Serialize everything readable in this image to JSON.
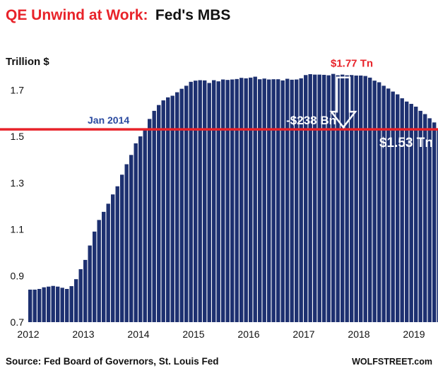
{
  "title": {
    "red_part": "QE Unwind at Work:",
    "black_part": "Fed's MBS"
  },
  "source": "Source: Fed Board of Governors, St. Louis Fed",
  "brand": "WOLFSTREET.com",
  "colors": {
    "bar": "#1d3070",
    "reference_line": "#e8232a",
    "title_accent": "#e8232a",
    "annotation_blue": "#2a4aa0",
    "annotation_white": "#ffffff"
  },
  "chart_data": {
    "type": "bar",
    "ylabel": "Trillion $",
    "ylim": [
      0.7,
      1.85
    ],
    "y_ticks": [
      "0.7",
      "0.9",
      "1.1",
      "1.3",
      "1.5",
      "1.7"
    ],
    "x_ticks": [
      "2012",
      "2013",
      "2014",
      "2015",
      "2016",
      "2017",
      "2018",
      "2019"
    ],
    "x_start_year": 2012,
    "bars_per_year": 12,
    "grid": false,
    "values": [
      0.84,
      0.84,
      0.843,
      0.85,
      0.853,
      0.856,
      0.853,
      0.848,
      0.843,
      0.855,
      0.885,
      0.928,
      0.968,
      1.03,
      1.09,
      1.14,
      1.175,
      1.21,
      1.25,
      1.285,
      1.335,
      1.38,
      1.42,
      1.47,
      1.5,
      1.535,
      1.575,
      1.61,
      1.635,
      1.655,
      1.668,
      1.675,
      1.69,
      1.705,
      1.718,
      1.735,
      1.74,
      1.742,
      1.741,
      1.73,
      1.742,
      1.737,
      1.745,
      1.743,
      1.745,
      1.747,
      1.752,
      1.75,
      1.753,
      1.757,
      1.746,
      1.749,
      1.745,
      1.746,
      1.746,
      1.741,
      1.748,
      1.744,
      1.745,
      1.75,
      1.764,
      1.768,
      1.766,
      1.766,
      1.765,
      1.763,
      1.769,
      1.763,
      1.766,
      1.763,
      1.764,
      1.762,
      1.762,
      1.76,
      1.753,
      1.74,
      1.733,
      1.718,
      1.706,
      1.693,
      1.681,
      1.664,
      1.65,
      1.64,
      1.628,
      1.61,
      1.596,
      1.578,
      1.56,
      1.535
    ],
    "reference_line": {
      "value": 1.53,
      "label": "Jan 2014"
    },
    "annotations": {
      "peak": "$1.77 Tn",
      "drop": "-$238 Bn",
      "latest": "$1.53 Tn"
    }
  }
}
